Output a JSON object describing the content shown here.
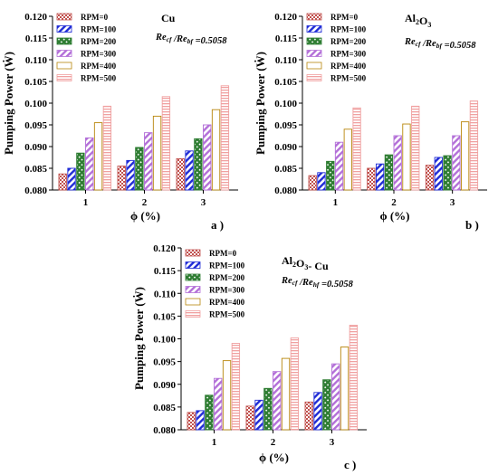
{
  "colors": {
    "RPM=0": "#c0504d",
    "RPM=100": "#1f2bd6",
    "RPM=200": "#2e7d32",
    "RPM=300": "#b36fd8",
    "RPM=400": "#b8860b",
    "RPM=500": "#f0a0a0"
  },
  "chart_data": [
    {
      "type": "bar",
      "panel_label": "a )",
      "material": "Cu",
      "annotation": "Re_cf /Re_bf =0.5058",
      "xlabel": "ϕ (%)",
      "ylabel": "Pumping Power (Ẇ)",
      "categories": [
        "1",
        "2",
        "3"
      ],
      "ylim": [
        0.08,
        0.12
      ],
      "yticks": [
        "0.080",
        "0.085",
        "0.090",
        "0.095",
        "0.100",
        "0.105",
        "0.110",
        "0.115",
        "0.120"
      ],
      "legend_position": "top-left",
      "series": [
        {
          "name": "RPM=0",
          "values": [
            0.0837,
            0.0855,
            0.0872
          ]
        },
        {
          "name": "RPM=100",
          "values": [
            0.085,
            0.0868,
            0.089
          ]
        },
        {
          "name": "RPM=200",
          "values": [
            0.0885,
            0.0898,
            0.0918
          ]
        },
        {
          "name": "RPM=300",
          "values": [
            0.092,
            0.0932,
            0.095
          ]
        },
        {
          "name": "RPM=400",
          "values": [
            0.0955,
            0.097,
            0.0985
          ]
        },
        {
          "name": "RPM=500",
          "values": [
            0.0993,
            0.1015,
            0.104
          ]
        }
      ]
    },
    {
      "type": "bar",
      "panel_label": "b )",
      "material": "Al2O3",
      "annotation": "Re_cf /Re_bf =0.5058",
      "xlabel": "ϕ (%)",
      "ylabel": "Pumping Power (Ẇ)",
      "categories": [
        "1",
        "2",
        "3"
      ],
      "ylim": [
        0.08,
        0.12
      ],
      "yticks": [
        "0.080",
        "0.085",
        "0.090",
        "0.095",
        "0.100",
        "0.105",
        "0.110",
        "0.115",
        "0.120"
      ],
      "legend_position": "top-left",
      "series": [
        {
          "name": "RPM=0",
          "values": [
            0.0833,
            0.085,
            0.0857
          ]
        },
        {
          "name": "RPM=100",
          "values": [
            0.084,
            0.086,
            0.0875
          ]
        },
        {
          "name": "RPM=200",
          "values": [
            0.0866,
            0.0881,
            0.0879
          ]
        },
        {
          "name": "RPM=300",
          "values": [
            0.091,
            0.0925,
            0.0925
          ]
        },
        {
          "name": "RPM=400",
          "values": [
            0.094,
            0.0952,
            0.0957
          ]
        },
        {
          "name": "RPM=500",
          "values": [
            0.0989,
            0.0993,
            0.1005
          ]
        }
      ]
    },
    {
      "type": "bar",
      "panel_label": "c )",
      "material": "Al2O3- Cu",
      "annotation": "Re_cf /Re_hf =0.5058",
      "xlabel": "ϕ (%)",
      "ylabel": "Pumping Power (Ẇ)",
      "categories": [
        "1",
        "2",
        "3"
      ],
      "ylim": [
        0.08,
        0.12
      ],
      "yticks": [
        "0.080",
        "0.085",
        "0.090",
        "0.095",
        "0.100",
        "0.105",
        "0.110",
        "0.115",
        "0.120"
      ],
      "legend_position": "top-left",
      "series": [
        {
          "name": "RPM=0",
          "values": [
            0.0838,
            0.0852,
            0.0861
          ]
        },
        {
          "name": "RPM=100",
          "values": [
            0.0842,
            0.0865,
            0.0882
          ]
        },
        {
          "name": "RPM=200",
          "values": [
            0.0876,
            0.0891,
            0.091
          ]
        },
        {
          "name": "RPM=300",
          "values": [
            0.0913,
            0.0928,
            0.0945
          ]
        },
        {
          "name": "RPM=400",
          "values": [
            0.0952,
            0.0957,
            0.0982
          ]
        },
        {
          "name": "RPM=500",
          "values": [
            0.099,
            0.1002,
            0.103
          ]
        }
      ]
    }
  ]
}
